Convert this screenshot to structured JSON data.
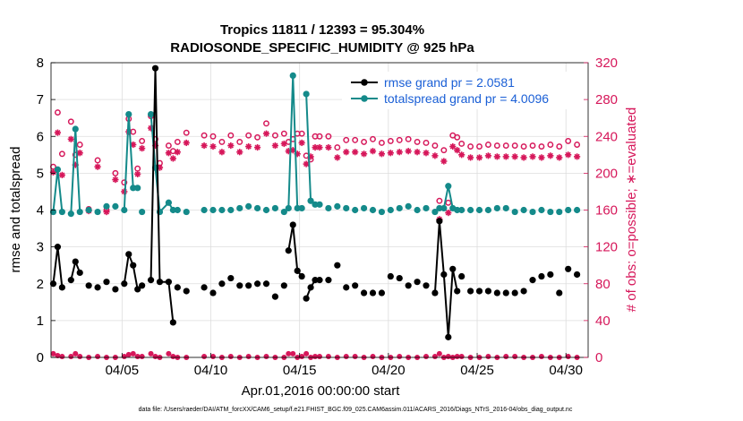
{
  "chart_data": {
    "type": "line",
    "title_line1": "Tropics 11811 / 12393 = 95.304%",
    "title_line2": "RADIOSONDE_SPECIFIC_HUMIDITY @ 925 hPa",
    "xlabel": "Apr.01,2016 00:00:00 start",
    "ylabel_left": "rmse and totalspread",
    "ylabel_right": "# of obs: o=possible; ∗=evaluated",
    "footnote": "data file: /Users/raeder/DAI/ATM_forcXX/CAM6_setup/f.e21.FHIST_BGC.f09_025.CAM6assim.011/ACARS_2016/Diags_NTrS_2016-04/obs_diag_output.nc",
    "xlim": [
      1.0,
      31.25
    ],
    "ylim_left": [
      0,
      8
    ],
    "ylim_right": [
      0,
      320
    ],
    "x_ticks": [
      5,
      10,
      15,
      20,
      25,
      30
    ],
    "x_tick_labels": [
      "04/05",
      "04/10",
      "04/15",
      "04/20",
      "04/25",
      "04/30"
    ],
    "y_left_ticks": [
      "0",
      "1",
      "2",
      "3",
      "4",
      "5",
      "6",
      "7",
      "8"
    ],
    "y_right_ticks": [
      "0",
      "40",
      "80",
      "120",
      "160",
      "200",
      "240",
      "280",
      "320"
    ],
    "colors": {
      "rmse": "#000000",
      "spread": "#148a8a",
      "obs": "#d6175a",
      "legend_text": "#1a5fd6"
    },
    "series": [
      {
        "name": "rmse grand pr = 2.0581",
        "x": [
          1.125,
          1.375,
          1.625,
          2.125,
          2.375,
          2.625,
          3.125,
          3.625,
          4.125,
          4.625,
          5.125,
          5.375,
          5.625,
          5.875,
          6.125,
          6.625,
          6.875,
          7.125,
          7.625,
          7.875,
          8.125,
          8.625,
          9.625,
          10.125,
          10.625,
          11.125,
          11.625,
          12.125,
          12.625,
          13.125,
          13.625,
          14.125,
          14.375,
          14.625,
          14.875,
          15.125,
          15.375,
          15.625,
          15.875,
          16.125,
          16.625,
          17.125,
          17.625,
          18.125,
          18.625,
          19.125,
          19.625,
          20.125,
          20.625,
          21.125,
          21.625,
          22.125,
          22.625,
          22.875,
          23.125,
          23.375,
          23.625,
          23.875,
          24.125,
          24.625,
          25.125,
          25.625,
          26.125,
          26.625,
          27.125,
          27.625,
          28.125,
          28.625,
          29.125,
          29.625,
          30.125,
          30.625
        ],
        "values": [
          2.0,
          3.0,
          1.9,
          2.1,
          2.6,
          2.3,
          1.95,
          1.9,
          2.05,
          1.85,
          2.0,
          2.8,
          2.5,
          1.85,
          1.95,
          2.1,
          7.85,
          2.05,
          2.05,
          0.95,
          1.9,
          1.8,
          1.9,
          1.75,
          2.0,
          2.15,
          1.95,
          1.95,
          2.0,
          2.0,
          1.65,
          1.95,
          2.9,
          3.6,
          2.35,
          2.2,
          1.6,
          1.9,
          2.1,
          2.1,
          2.1,
          2.5,
          1.9,
          1.95,
          1.75,
          1.75,
          1.75,
          2.2,
          2.15,
          1.95,
          2.05,
          1.95,
          1.75,
          3.7,
          2.25,
          0.55,
          2.4,
          1.8,
          2.2,
          1.8,
          1.8,
          1.8,
          1.75,
          1.75,
          1.75,
          1.8,
          2.1,
          2.2,
          2.25,
          1.75,
          2.4,
          2.25
        ],
        "connected": [
          [
            0,
            2
          ],
          [
            3,
            5
          ],
          [
            10,
            13
          ],
          [
            15,
            19
          ],
          [
            32,
            35
          ],
          [
            36,
            38
          ],
          [
            52,
            57
          ]
        ]
      },
      {
        "name": "totalspread grand pr = 4.0096",
        "x": [
          1.125,
          1.375,
          1.625,
          2.125,
          2.375,
          2.625,
          3.125,
          3.625,
          4.125,
          4.625,
          5.125,
          5.375,
          5.625,
          5.875,
          6.125,
          6.625,
          6.875,
          7.125,
          7.625,
          7.875,
          8.125,
          8.625,
          9.625,
          10.125,
          10.625,
          11.125,
          11.625,
          12.125,
          12.625,
          13.125,
          13.625,
          14.125,
          14.375,
          14.625,
          14.875,
          15.125,
          15.375,
          15.625,
          15.875,
          16.125,
          16.625,
          17.125,
          17.625,
          18.125,
          18.625,
          19.125,
          19.625,
          20.125,
          20.625,
          21.125,
          21.625,
          22.125,
          22.625,
          22.875,
          23.125,
          23.375,
          23.625,
          23.875,
          24.125,
          24.625,
          25.125,
          25.625,
          26.125,
          26.625,
          27.125,
          27.625,
          28.125,
          28.625,
          29.125,
          29.625,
          30.125,
          30.625
        ],
        "values": [
          3.95,
          5.1,
          3.95,
          3.9,
          6.2,
          3.95,
          4.0,
          3.95,
          4.1,
          4.1,
          4.0,
          6.6,
          4.6,
          4.6,
          3.95,
          6.6,
          5.15,
          3.95,
          4.2,
          4.0,
          4.0,
          3.95,
          4.0,
          4.0,
          4.0,
          4.0,
          4.05,
          4.1,
          4.05,
          4.0,
          4.05,
          3.95,
          4.05,
          7.65,
          4.05,
          4.05,
          7.15,
          4.25,
          4.15,
          4.15,
          4.05,
          4.1,
          4.05,
          4.0,
          4.05,
          4.0,
          3.95,
          4.0,
          4.05,
          4.1,
          4.0,
          4.05,
          3.95,
          4.05,
          4.05,
          4.65,
          4.05,
          4.0,
          4.0,
          4.0,
          4.0,
          4.0,
          4.05,
          4.05,
          3.95,
          4.0,
          3.95,
          4.0,
          3.95,
          3.95,
          4.0,
          4.0
        ],
        "connected": [
          [
            0,
            2
          ],
          [
            3,
            5
          ],
          [
            10,
            13
          ],
          [
            15,
            19
          ],
          [
            32,
            35
          ],
          [
            36,
            38
          ],
          [
            52,
            57
          ]
        ]
      },
      {
        "name": "possible obs",
        "x": [
          1.125,
          1.375,
          1.625,
          2.125,
          2.375,
          2.625,
          3.125,
          3.625,
          4.125,
          4.625,
          5.125,
          5.375,
          5.625,
          5.875,
          6.125,
          6.625,
          6.875,
          7.125,
          7.625,
          7.875,
          8.125,
          8.625,
          9.625,
          10.125,
          10.625,
          11.125,
          11.625,
          12.125,
          12.625,
          13.125,
          13.625,
          14.125,
          14.375,
          14.625,
          14.875,
          15.125,
          15.375,
          15.625,
          15.875,
          16.125,
          16.625,
          17.125,
          17.625,
          18.125,
          18.625,
          19.125,
          19.625,
          20.125,
          20.625,
          21.125,
          21.625,
          22.125,
          22.625,
          22.875,
          23.125,
          23.375,
          23.625,
          23.875,
          24.125,
          24.625,
          25.125,
          25.625,
          26.125,
          26.625,
          27.125,
          27.625,
          28.125,
          28.625,
          29.125,
          29.625,
          30.125,
          30.625
        ],
        "values": [
          207,
          266,
          221,
          256,
          220,
          231,
          161,
          214,
          160,
          200,
          190,
          259,
          245,
          205,
          235,
          262,
          237,
          211,
          230,
          224,
          234,
          244,
          241,
          240,
          234,
          241,
          234,
          241,
          239,
          254,
          241,
          243,
          234,
          237,
          243,
          243,
          219,
          215,
          240,
          240,
          240,
          228,
          236,
          236,
          234,
          237,
          233,
          235,
          236,
          237,
          234,
          233,
          230,
          170,
          225,
          168,
          241,
          239,
          232,
          229,
          229,
          231,
          230,
          230,
          230,
          229,
          230,
          229,
          231,
          229,
          235,
          231
        ]
      },
      {
        "name": "evaluated obs",
        "x": [
          1.125,
          1.375,
          1.625,
          2.125,
          2.375,
          2.625,
          3.125,
          3.625,
          4.125,
          4.625,
          5.125,
          5.375,
          5.625,
          5.875,
          6.125,
          6.625,
          6.875,
          7.125,
          7.625,
          7.875,
          8.125,
          8.625,
          9.625,
          10.125,
          10.625,
          11.125,
          11.625,
          12.125,
          12.625,
          13.125,
          13.625,
          14.125,
          14.375,
          14.625,
          14.875,
          15.125,
          15.375,
          15.625,
          15.875,
          16.125,
          16.625,
          17.125,
          17.625,
          18.125,
          18.625,
          19.125,
          19.625,
          20.125,
          20.625,
          21.125,
          21.625,
          22.125,
          22.625,
          22.875,
          23.125,
          23.375,
          23.625,
          23.875,
          24.125,
          24.625,
          25.125,
          25.625,
          26.125,
          26.625,
          27.125,
          27.625,
          28.125,
          28.625,
          29.125,
          29.625,
          30.125,
          30.625
        ],
        "values": [
          201,
          244,
          198,
          237,
          209,
          222,
          159,
          207,
          158,
          193,
          180,
          245,
          231,
          199,
          227,
          249,
          230,
          206,
          222,
          216,
          223,
          233,
          230,
          229,
          223,
          230,
          223,
          229,
          228,
          243,
          230,
          232,
          224,
          225,
          221,
          233,
          210,
          218,
          228,
          228,
          228,
          217,
          223,
          223,
          221,
          224,
          221,
          222,
          223,
          224,
          223,
          222,
          219,
          150,
          213,
          157,
          229,
          225,
          220,
          217,
          217,
          219,
          218,
          218,
          218,
          217,
          218,
          217,
          219,
          217,
          220,
          218
        ]
      },
      {
        "name": "zero obs",
        "x": [
          1.125,
          1.375,
          1.625,
          2.125,
          2.375,
          2.625,
          3.125,
          3.625,
          4.125,
          4.625,
          5.125,
          5.375,
          5.625,
          5.875,
          6.125,
          6.625,
          6.875,
          7.125,
          7.625,
          7.875,
          8.125,
          8.625,
          9.625,
          10.125,
          10.625,
          11.125,
          11.625,
          12.125,
          12.625,
          13.125,
          13.625,
          14.125,
          14.375,
          14.625,
          14.875,
          15.125,
          15.375,
          15.625,
          15.875,
          16.125,
          16.625,
          17.125,
          17.625,
          18.125,
          18.625,
          19.125,
          19.625,
          20.125,
          20.625,
          21.125,
          21.625,
          22.125,
          22.625,
          22.875,
          23.125,
          23.375,
          23.625,
          23.875,
          24.125,
          24.625,
          25.125,
          25.625,
          26.125,
          26.625,
          27.125,
          27.625,
          28.125,
          28.625,
          29.125,
          29.625,
          30.125,
          30.625
        ],
        "values": [
          4,
          2,
          1,
          1,
          4,
          1,
          0,
          1,
          0,
          0,
          1,
          3,
          4,
          1,
          1,
          4,
          1,
          0,
          4,
          1,
          0,
          0,
          1,
          1,
          0,
          1,
          0,
          1,
          0,
          1,
          0,
          0,
          4,
          4,
          0,
          1,
          4,
          0,
          1,
          1,
          1,
          0,
          1,
          1,
          0,
          1,
          0,
          0,
          1,
          0,
          0,
          1,
          1,
          4,
          0,
          1,
          0,
          1,
          1,
          0,
          0,
          1,
          0,
          1,
          1,
          0,
          0,
          1,
          0,
          0,
          1,
          0
        ]
      }
    ]
  }
}
